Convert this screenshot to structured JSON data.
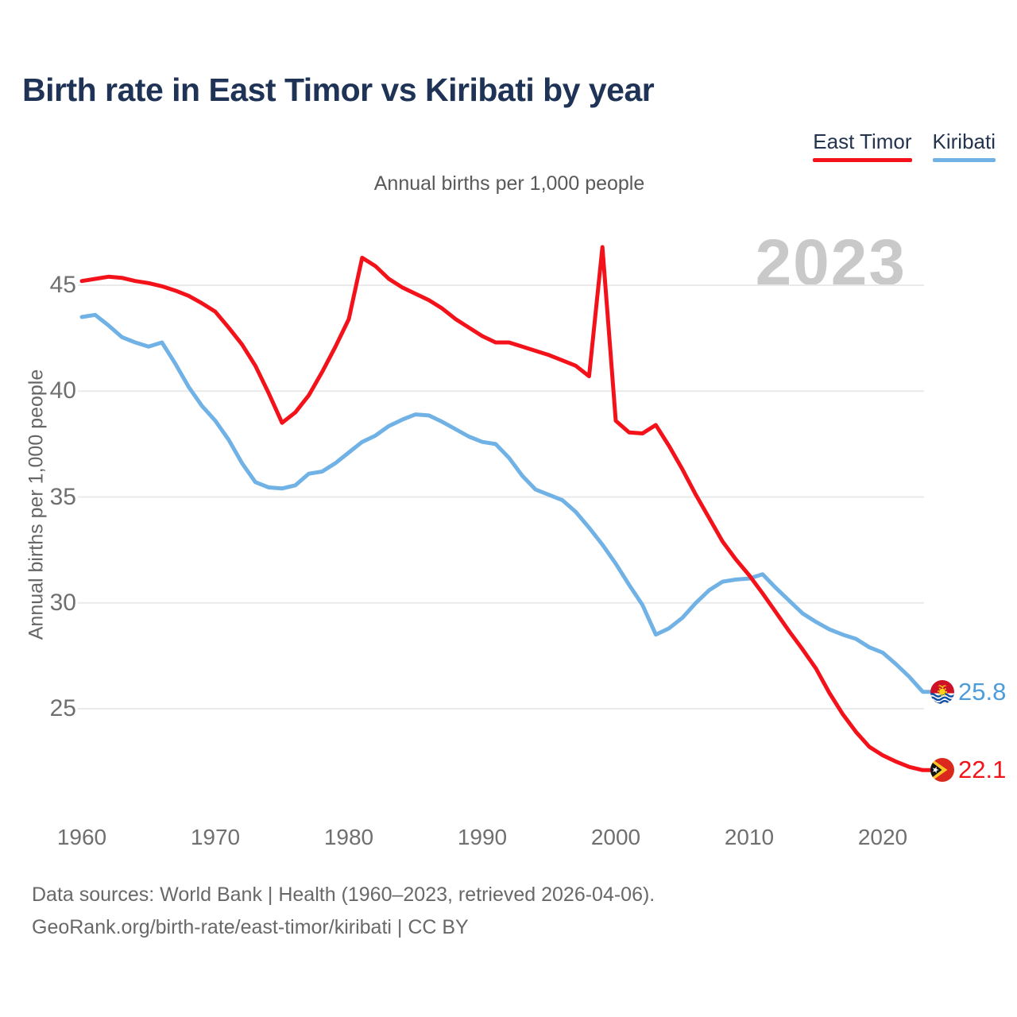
{
  "page": {
    "title": "Birth rate in East Timor vs Kiribati by year",
    "watermark": "2023"
  },
  "legend": {
    "items": [
      {
        "label": "East Timor",
        "color": "#f4121a"
      },
      {
        "label": "Kiribati",
        "color": "#70b2e5"
      }
    ]
  },
  "footer": {
    "line1": "Data sources: World Bank | Health (1960–2023, retrieved 2026-04-06).",
    "line2": "GeoRank.org/birth-rate/east-timor/kiribati | CC BY"
  },
  "chart_data": {
    "type": "line",
    "title": "Birth rate in East Timor vs Kiribati by year",
    "subtitle": "Annual births per 1,000 people",
    "ylabel": "Annual births per 1,000 people",
    "xlabel": "",
    "grid": "horizontal",
    "legend_position": "top-right",
    "xlim": [
      1960,
      2023
    ],
    "ylim": [
      21.5,
      47.5
    ],
    "x_ticks": [
      1960,
      1970,
      1980,
      1990,
      2000,
      2010,
      2020
    ],
    "y_ticks": [
      45,
      40,
      35,
      30,
      25
    ],
    "x": [
      1960,
      1961,
      1962,
      1963,
      1964,
      1965,
      1966,
      1967,
      1968,
      1969,
      1970,
      1971,
      1972,
      1973,
      1974,
      1975,
      1976,
      1977,
      1978,
      1979,
      1980,
      1981,
      1982,
      1983,
      1984,
      1985,
      1986,
      1987,
      1988,
      1989,
      1990,
      1991,
      1992,
      1993,
      1994,
      1995,
      1996,
      1997,
      1998,
      1999,
      2000,
      2001,
      2002,
      2003,
      2004,
      2005,
      2006,
      2007,
      2008,
      2009,
      2010,
      2011,
      2012,
      2013,
      2014,
      2015,
      2016,
      2017,
      2018,
      2019,
      2020,
      2021,
      2022,
      2023
    ],
    "series": [
      {
        "name": "East Timor",
        "color": "#f4121a",
        "end_label": "22.1",
        "end_value": 22.1,
        "flag": "east-timor-flag",
        "values": [
          45.2,
          45.3,
          45.4,
          45.35,
          45.2,
          45.1,
          44.95,
          44.75,
          44.5,
          44.15,
          43.75,
          43.0,
          42.2,
          41.2,
          39.9,
          38.5,
          39.0,
          39.8,
          40.9,
          42.1,
          43.4,
          46.3,
          45.9,
          45.3,
          44.9,
          44.6,
          44.3,
          43.9,
          43.4,
          43.0,
          42.6,
          42.3,
          42.3,
          42.1,
          41.9,
          41.7,
          41.45,
          41.2,
          40.7,
          46.8,
          38.6,
          38.05,
          38.0,
          38.4,
          37.4,
          36.3,
          35.1,
          34.0,
          32.9,
          32.05,
          31.3,
          30.45,
          29.55,
          28.65,
          27.8,
          26.9,
          25.75,
          24.75,
          23.9,
          23.2,
          22.8,
          22.5,
          22.25,
          22.1
        ]
      },
      {
        "name": "Kiribati",
        "color": "#70b2e5",
        "end_label": "25.8",
        "end_value": 25.8,
        "flag": "kiribati-flag",
        "values": [
          43.5,
          43.6,
          43.1,
          42.55,
          42.3,
          42.1,
          42.3,
          41.3,
          40.2,
          39.3,
          38.6,
          37.7,
          36.6,
          35.7,
          35.45,
          35.4,
          35.55,
          36.1,
          36.2,
          36.6,
          37.1,
          37.6,
          37.9,
          38.35,
          38.65,
          38.9,
          38.85,
          38.55,
          38.2,
          37.85,
          37.6,
          37.5,
          36.85,
          36.0,
          35.35,
          35.1,
          34.85,
          34.3,
          33.55,
          32.75,
          31.85,
          30.85,
          29.9,
          28.5,
          28.8,
          29.3,
          30.0,
          30.6,
          31.0,
          31.1,
          31.15,
          31.35,
          30.7,
          30.1,
          29.5,
          29.1,
          28.75,
          28.5,
          28.3,
          27.9,
          27.65,
          27.1,
          26.5,
          25.8
        ]
      }
    ]
  }
}
